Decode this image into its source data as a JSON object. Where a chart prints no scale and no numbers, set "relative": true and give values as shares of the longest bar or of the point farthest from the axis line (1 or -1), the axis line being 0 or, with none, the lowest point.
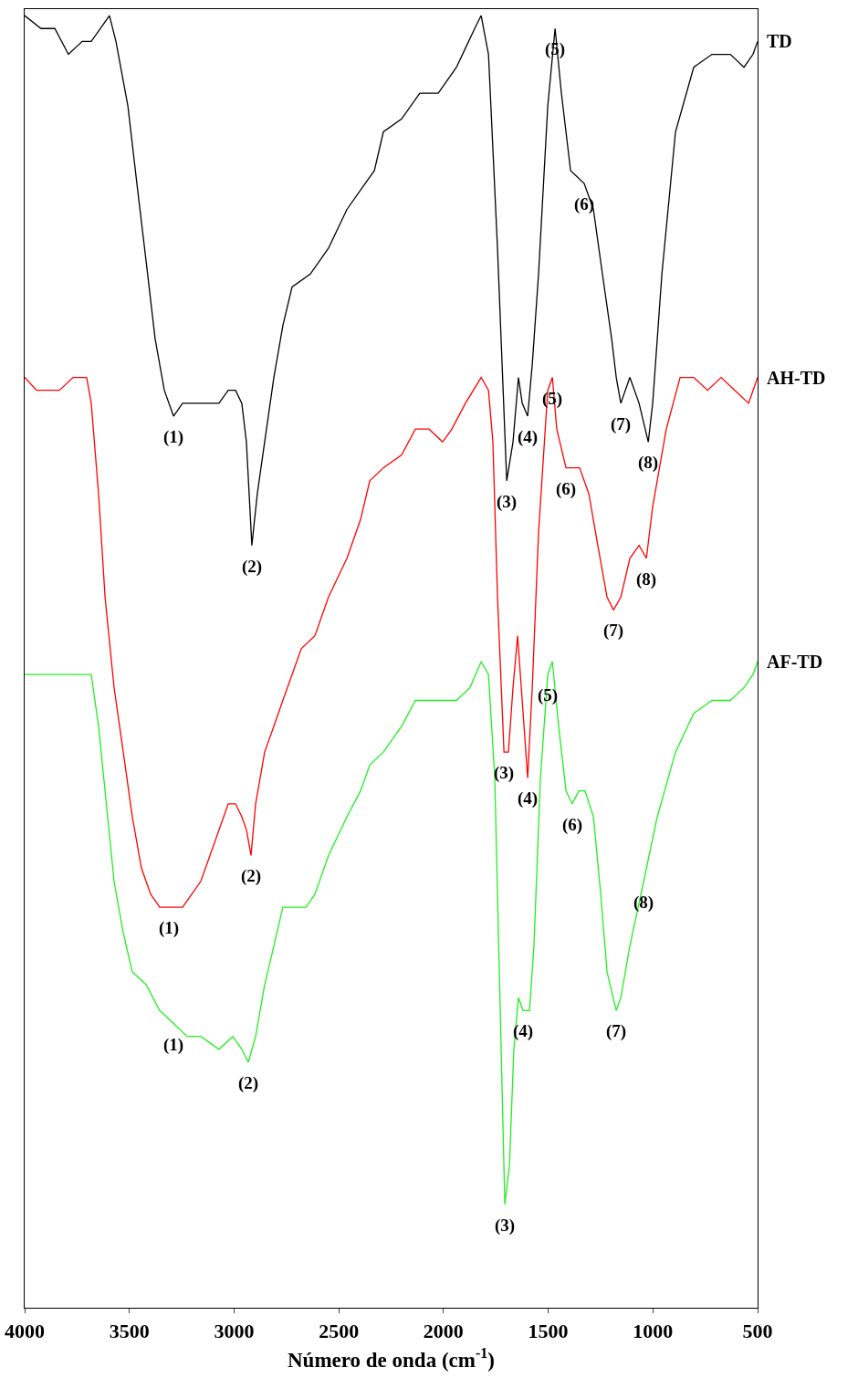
{
  "chart_data": {
    "type": "line",
    "relative": true,
    "xlabel": "Número de onda (cm$^{-1}$)",
    "xlim": [
      4000,
      500
    ],
    "xticks": [
      4000,
      3500,
      3000,
      2500,
      2000,
      1500,
      1000,
      500
    ],
    "tick_labels": "x",
    "grid": false,
    "legend": false,
    "marker": "none",
    "line_style": "solid",
    "series": [
      {
        "name": "TD",
        "color": "#000000",
        "x": [
          4000,
          3922,
          3856,
          3791,
          3725,
          3682,
          3638,
          3595,
          3564,
          3507,
          3464,
          3420,
          3377,
          3333,
          3289,
          3246,
          3202,
          3159,
          3115,
          3072,
          3028,
          2993,
          2963,
          2941,
          2915,
          2889,
          2854,
          2810,
          2767,
          2723,
          2636,
          2549,
          2461,
          2374,
          2330,
          2287,
          2200,
          2113,
          2025,
          1938,
          1851,
          1820,
          1785,
          1742,
          1698,
          1668,
          1642,
          1624,
          1598,
          1576,
          1546,
          1502,
          1467,
          1437,
          1393,
          1328,
          1284,
          1241,
          1197,
          1175,
          1153,
          1110,
          1066,
          1022,
          1001,
          957,
          892,
          805,
          718,
          630,
          565,
          522,
          500
        ],
        "values": [
          1.0,
          0.99,
          0.99,
          0.97,
          0.98,
          0.98,
          0.99,
          1.0,
          0.98,
          0.93,
          0.87,
          0.81,
          0.75,
          0.71,
          0.69,
          0.7,
          0.7,
          0.7,
          0.7,
          0.7,
          0.71,
          0.71,
          0.7,
          0.67,
          0.59,
          0.63,
          0.67,
          0.72,
          0.76,
          0.79,
          0.8,
          0.82,
          0.85,
          0.87,
          0.88,
          0.91,
          0.92,
          0.94,
          0.94,
          0.96,
          0.99,
          1.0,
          0.97,
          0.82,
          0.64,
          0.67,
          0.72,
          0.7,
          0.69,
          0.73,
          0.8,
          0.93,
          0.99,
          0.94,
          0.88,
          0.87,
          0.85,
          0.8,
          0.75,
          0.72,
          0.7,
          0.72,
          0.7,
          0.67,
          0.7,
          0.8,
          0.91,
          0.96,
          0.97,
          0.97,
          0.96,
          0.97,
          0.98
        ]
      },
      {
        "name": "AH-TD",
        "color": "#ff0000",
        "x": [
          4000,
          3943,
          3878,
          3834,
          3769,
          3704,
          3682,
          3647,
          3616,
          3573,
          3529,
          3486,
          3442,
          3398,
          3355,
          3311,
          3246,
          3202,
          3159,
          3093,
          3028,
          2993,
          2963,
          2941,
          2919,
          2897,
          2854,
          2810,
          2767,
          2723,
          2679,
          2614,
          2549,
          2461,
          2396,
          2352,
          2287,
          2200,
          2134,
          2069,
          2004,
          1960,
          1895,
          1820,
          1785,
          1764,
          1742,
          1711,
          1690,
          1668,
          1646,
          1624,
          1598,
          1576,
          1546,
          1502,
          1480,
          1459,
          1415,
          1350,
          1306,
          1263,
          1219,
          1188,
          1153,
          1110,
          1066,
          1031,
          1001,
          936,
          870,
          805,
          739,
          674,
          609,
          543,
          500
        ],
        "values": [
          0.72,
          0.71,
          0.71,
          0.71,
          0.72,
          0.72,
          0.7,
          0.63,
          0.55,
          0.48,
          0.43,
          0.38,
          0.34,
          0.32,
          0.31,
          0.31,
          0.31,
          0.32,
          0.33,
          0.36,
          0.39,
          0.39,
          0.38,
          0.37,
          0.35,
          0.39,
          0.43,
          0.45,
          0.47,
          0.49,
          0.51,
          0.52,
          0.55,
          0.58,
          0.61,
          0.64,
          0.65,
          0.66,
          0.68,
          0.68,
          0.67,
          0.68,
          0.7,
          0.72,
          0.71,
          0.67,
          0.55,
          0.43,
          0.43,
          0.48,
          0.52,
          0.47,
          0.41,
          0.48,
          0.6,
          0.71,
          0.72,
          0.68,
          0.65,
          0.65,
          0.63,
          0.59,
          0.55,
          0.54,
          0.55,
          0.58,
          0.59,
          0.58,
          0.62,
          0.68,
          0.72,
          0.72,
          0.71,
          0.72,
          0.71,
          0.7,
          0.72
        ]
      },
      {
        "name": "AF-TD",
        "color": "#22ee22",
        "x": [
          4000,
          3943,
          3878,
          3813,
          3747,
          3682,
          3647,
          3616,
          3573,
          3529,
          3486,
          3420,
          3355,
          3289,
          3224,
          3159,
          3072,
          3006,
          2963,
          2932,
          2897,
          2854,
          2810,
          2767,
          2714,
          2657,
          2614,
          2549,
          2461,
          2396,
          2352,
          2287,
          2200,
          2134,
          2069,
          2004,
          1938,
          1873,
          1820,
          1785,
          1755,
          1729,
          1707,
          1685,
          1664,
          1642,
          1620,
          1589,
          1568,
          1537,
          1502,
          1480,
          1450,
          1415,
          1385,
          1354,
          1324,
          1284,
          1249,
          1219,
          1175,
          1153,
          1110,
          1044,
          979,
          892,
          805,
          718,
          630,
          565,
          522,
          500
        ],
        "values": [
          0.49,
          0.49,
          0.49,
          0.49,
          0.49,
          0.49,
          0.45,
          0.4,
          0.33,
          0.29,
          0.26,
          0.25,
          0.23,
          0.22,
          0.21,
          0.21,
          0.2,
          0.21,
          0.2,
          0.19,
          0.21,
          0.25,
          0.28,
          0.31,
          0.31,
          0.31,
          0.32,
          0.35,
          0.38,
          0.4,
          0.42,
          0.43,
          0.45,
          0.47,
          0.47,
          0.47,
          0.47,
          0.48,
          0.5,
          0.49,
          0.41,
          0.23,
          0.08,
          0.11,
          0.2,
          0.24,
          0.23,
          0.23,
          0.28,
          0.41,
          0.49,
          0.5,
          0.45,
          0.4,
          0.39,
          0.4,
          0.4,
          0.38,
          0.32,
          0.26,
          0.23,
          0.24,
          0.28,
          0.33,
          0.38,
          0.43,
          0.46,
          0.47,
          0.47,
          0.48,
          0.49,
          0.5
        ]
      }
    ],
    "annotations": [
      {
        "text": "(1)",
        "x": 3289,
        "y": 0.69
      },
      {
        "text": "(2)",
        "x": 2915,
        "y": 0.59
      },
      {
        "text": "(3)",
        "x": 1698,
        "y": 0.64
      },
      {
        "text": "(4)",
        "x": 1598,
        "y": 0.69
      },
      {
        "text": "(5)",
        "x": 1467,
        "y": 0.99
      },
      {
        "text": "(6)",
        "x": 1328,
        "y": 0.87
      },
      {
        "text": "(7)",
        "x": 1153,
        "y": 0.7
      },
      {
        "text": "(8)",
        "x": 1022,
        "y": 0.67
      },
      {
        "text": "(1)",
        "x": 3311,
        "y": 0.31
      },
      {
        "text": "(2)",
        "x": 2919,
        "y": 0.35
      },
      {
        "text": "(3)",
        "x": 1711,
        "y": 0.43
      },
      {
        "text": "(4)",
        "x": 1598,
        "y": 0.41
      },
      {
        "text": "(5)",
        "x": 1480,
        "y": 0.72
      },
      {
        "text": "(6)",
        "x": 1415,
        "y": 0.65
      },
      {
        "text": "(7)",
        "x": 1188,
        "y": 0.54
      },
      {
        "text": "(8)",
        "x": 1031,
        "y": 0.58
      },
      {
        "text": "(1)",
        "x": 3289,
        "y": 0.22
      },
      {
        "text": "(2)",
        "x": 2932,
        "y": 0.19
      },
      {
        "text": "(3)",
        "x": 1707,
        "y": 0.08
      },
      {
        "text": "(4)",
        "x": 1620,
        "y": 0.23
      },
      {
        "text": "(5)",
        "x": 1502,
        "y": 0.49
      },
      {
        "text": "(6)",
        "x": 1385,
        "y": 0.39
      },
      {
        "text": "(7)",
        "x": 1175,
        "y": 0.23
      },
      {
        "text": "(8)",
        "x": 1044,
        "y": 0.33
      }
    ]
  }
}
